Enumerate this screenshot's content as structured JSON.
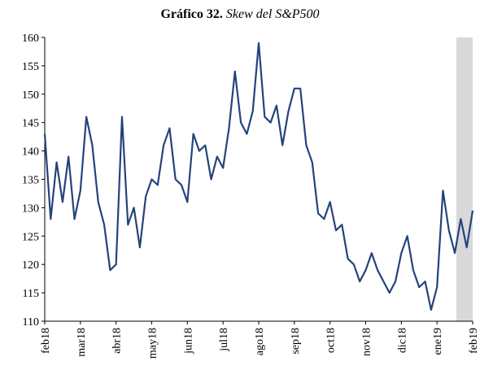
{
  "chart_data": {
    "type": "line",
    "title": "Gráfico 32.",
    "subtitle": "Skew del S&P500",
    "categories": [
      "feb18",
      null,
      null,
      null,
      null,
      null,
      "mar18",
      null,
      null,
      null,
      null,
      null,
      "abr18",
      null,
      null,
      null,
      null,
      null,
      "may18",
      null,
      null,
      null,
      null,
      null,
      "jun18",
      null,
      null,
      null,
      null,
      null,
      "jul18",
      null,
      null,
      null,
      null,
      null,
      "ago18",
      null,
      null,
      null,
      null,
      null,
      "sep18",
      null,
      null,
      null,
      null,
      null,
      "oct18",
      null,
      null,
      null,
      null,
      null,
      "nov18",
      null,
      null,
      null,
      null,
      null,
      "dic18",
      null,
      null,
      null,
      null,
      null,
      "ene19",
      null,
      null,
      null,
      null,
      null,
      "feb19"
    ],
    "series": [
      {
        "name": "Skew del S&P500",
        "color": "#24437c",
        "values": [
          143,
          128,
          138,
          131,
          139,
          128,
          133,
          146,
          141,
          131,
          127,
          119,
          120,
          146,
          127,
          130,
          123,
          132,
          135,
          134,
          141,
          144,
          135,
          134,
          131,
          143,
          140,
          141,
          135,
          139,
          137,
          144,
          154,
          145,
          143,
          147,
          159,
          146,
          145,
          148,
          141,
          147,
          151,
          151,
          141,
          138,
          129,
          128,
          131,
          126,
          127,
          121,
          120,
          117,
          119,
          122,
          119,
          117,
          115,
          117,
          122,
          125,
          119,
          116,
          117,
          112,
          116,
          133,
          126,
          122,
          128,
          123,
          129.5
        ]
      }
    ],
    "ylim": [
      110,
      160
    ],
    "yticks": [
      110,
      115,
      120,
      125,
      130,
      135,
      140,
      145,
      150,
      155,
      160
    ],
    "grid": false
  }
}
